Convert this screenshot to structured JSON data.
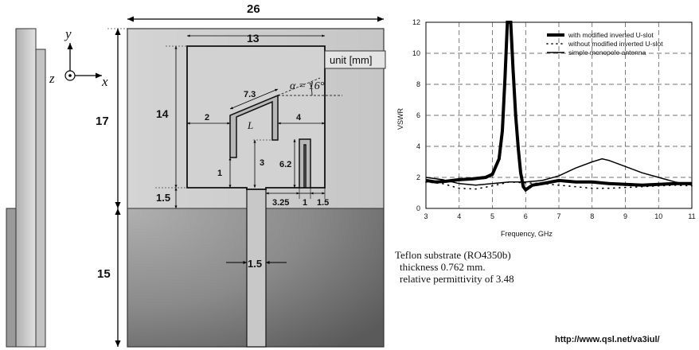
{
  "antenna": {
    "dims": {
      "total_width": "26",
      "upper_height": "17",
      "lower_height": "15",
      "patch_width": "13",
      "patch_height": "14",
      "slot_top": "7.3",
      "slot_left_offset": "2",
      "slot_right_offset": "4",
      "slot_bottom": "1",
      "slot_height": "3",
      "strip_height": "6.2",
      "gap_1_5_left": "1.5",
      "feed_offset": "3.25",
      "strip_width": "1",
      "strip_gap": "1.5",
      "feed_width": "1.5"
    },
    "unit_label": "unit [mm]",
    "angle_label": "α = 16°",
    "length_label": "L",
    "axes": {
      "x": "x",
      "y": "y",
      "z": "z"
    }
  },
  "chart_data": {
    "type": "line",
    "title": "",
    "xlabel": "Frequency, GHz",
    "ylabel": "VSWR",
    "xlim": [
      3,
      11
    ],
    "ylim": [
      0,
      12
    ],
    "xticks": [
      3,
      4,
      5,
      6,
      7,
      8,
      9,
      10,
      11
    ],
    "yticks": [
      0,
      2,
      4,
      6,
      8,
      10,
      12
    ],
    "grid": true,
    "legend_position": "top-right",
    "series": [
      {
        "name": "with modified inverted U-slot",
        "style": "thick",
        "x": [
          3,
          3.3,
          3.6,
          4,
          4.4,
          4.8,
          5.0,
          5.2,
          5.3,
          5.38,
          5.45,
          5.55,
          5.62,
          5.7,
          5.78,
          5.85,
          5.93,
          6.0,
          6.2,
          6.5,
          7,
          7.5,
          8,
          8.5,
          9,
          9.5,
          10,
          10.5,
          11
        ],
        "y": [
          1.8,
          1.7,
          1.75,
          1.85,
          1.9,
          2.0,
          2.2,
          3.2,
          5.0,
          8.5,
          12,
          12,
          9.0,
          6.0,
          3.8,
          2.3,
          1.4,
          1.2,
          1.5,
          1.6,
          1.8,
          1.7,
          1.7,
          1.6,
          1.55,
          1.5,
          1.55,
          1.6,
          1.6
        ]
      },
      {
        "name": "without modified inverted U-slot",
        "style": "dotted",
        "x": [
          3,
          3.5,
          4,
          4.5,
          5,
          5.5,
          6,
          6.5,
          7,
          7.5,
          8,
          8.5,
          9,
          9.5,
          10,
          10.5,
          11
        ],
        "y": [
          1.7,
          1.6,
          1.3,
          1.25,
          1.45,
          1.7,
          1.65,
          1.6,
          1.5,
          1.4,
          1.3,
          1.3,
          1.35,
          1.4,
          1.45,
          1.5,
          1.45
        ]
      },
      {
        "name": "simple monopole antenna",
        "style": "thin",
        "x": [
          3,
          3.5,
          4,
          4.5,
          5,
          5.5,
          6,
          6.5,
          7,
          7.5,
          8,
          8.3,
          8.5,
          9,
          9.5,
          10,
          10.5,
          11
        ],
        "y": [
          2.0,
          1.85,
          1.6,
          1.5,
          1.6,
          1.7,
          1.7,
          1.8,
          2.1,
          2.6,
          3.0,
          3.2,
          3.1,
          2.7,
          2.3,
          2.0,
          1.7,
          1.5
        ]
      }
    ]
  },
  "notes": {
    "line1": "Teflon substrate (RO4350b)",
    "line2": "thickness 0.762 mm.",
    "line3": "relative permittivity of 3.48"
  },
  "url": "http://www.qsl.net/va3iul/"
}
